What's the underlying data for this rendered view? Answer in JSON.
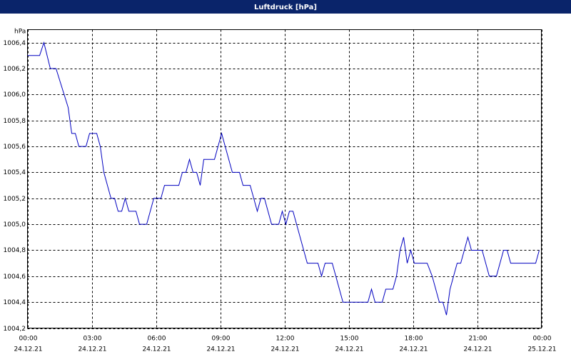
{
  "chart_data": {
    "type": "line",
    "title": "Luftdruck [hPa]",
    "y_unit": "hPa",
    "x": [
      "24.12.21 00:00",
      "24.12.21 00:34",
      "24.12.21 00:46",
      "24.12.21 01:04",
      "24.12.21 01:20",
      "24.12.21 01:54",
      "24.12.21 02:04",
      "24.12.21 02:14",
      "24.12.21 02:24",
      "24.12.21 02:44",
      "24.12.21 02:54",
      "24.12.21 03:14",
      "24.12.21 03:24",
      "24.12.21 03:34",
      "24.12.21 03:54",
      "24.12.21 04:04",
      "24.12.21 04:14",
      "24.12.21 04:24",
      "24.12.21 04:34",
      "24.12.21 04:44",
      "24.12.21 05:04",
      "24.12.21 05:14",
      "24.12.21 05:34",
      "24.12.21 05:54",
      "24.12.21 06:14",
      "24.12.21 06:24",
      "24.12.21 07:04",
      "24.12.21 07:14",
      "24.12.21 07:24",
      "24.12.21 07:34",
      "24.12.21 07:44",
      "24.12.21 07:54",
      "24.12.21 08:04",
      "24.12.21 08:14",
      "24.12.21 08:44",
      "24.12.21 09:04",
      "24.12.21 09:24",
      "24.12.21 09:34",
      "24.12.21 09:54",
      "24.12.21 10:04",
      "24.12.21 10:24",
      "24.12.21 10:44",
      "24.12.21 10:54",
      "24.12.21 11:04",
      "24.12.21 11:24",
      "24.12.21 11:44",
      "24.12.21 11:54",
      "24.12.21 12:04",
      "24.12.21 12:14",
      "24.12.21 12:24",
      "24.12.21 13:04",
      "24.12.21 13:34",
      "24.12.21 13:44",
      "24.12.21 13:54",
      "24.12.21 14:14",
      "24.12.21 14:44",
      "24.12.21 15:54",
      "24.12.21 16:04",
      "24.12.21 16:14",
      "24.12.21 16:34",
      "24.12.21 16:44",
      "24.12.21 17:04",
      "24.12.21 17:14",
      "24.12.21 17:24",
      "24.12.21 17:34",
      "24.12.21 17:44",
      "24.12.21 17:54",
      "24.12.21 18:04",
      "24.12.21 18:40",
      "24.12.21 18:54",
      "24.12.21 19:14",
      "24.12.21 19:24",
      "24.12.21 19:34",
      "24.12.21 19:44",
      "24.12.21 20:04",
      "24.12.21 20:14",
      "24.12.21 20:34",
      "24.12.21 20:44",
      "24.12.21 21:14",
      "24.12.21 21:34",
      "24.12.21 21:54",
      "24.12.21 22:14",
      "24.12.21 22:24",
      "24.12.21 22:34",
      "24.12.21 23:44",
      "24.12.21 23:54"
    ],
    "series": [
      {
        "color": "#0000c0",
        "values": [
          1006.3,
          1006.3,
          1006.4,
          1006.2,
          1006.2,
          1005.9,
          1005.7,
          1005.7,
          1005.6,
          1005.6,
          1005.7,
          1005.7,
          1005.6,
          1005.4,
          1005.2,
          1005.2,
          1005.1,
          1005.1,
          1005.2,
          1005.1,
          1005.1,
          1005.0,
          1005.0,
          1005.2,
          1005.2,
          1005.3,
          1005.3,
          1005.4,
          1005.4,
          1005.5,
          1005.4,
          1005.4,
          1005.3,
          1005.5,
          1005.5,
          1005.7,
          1005.5,
          1005.4,
          1005.4,
          1005.3,
          1005.3,
          1005.1,
          1005.2,
          1005.2,
          1005.0,
          1005.0,
          1005.1,
          1005.0,
          1005.1,
          1005.1,
          1004.7,
          1004.7,
          1004.6,
          1004.7,
          1004.7,
          1004.4,
          1004.4,
          1004.5,
          1004.4,
          1004.4,
          1004.5,
          1004.5,
          1004.6,
          1004.8,
          1004.9,
          1004.7,
          1004.8,
          1004.7,
          1004.7,
          1004.6,
          1004.4,
          1004.4,
          1004.3,
          1004.5,
          1004.7,
          1004.7,
          1004.9,
          1004.8,
          1004.8,
          1004.6,
          1004.6,
          1004.8,
          1004.8,
          1004.7,
          1004.7,
          1004.8
        ]
      }
    ],
    "xlim": [
      "24.12.21 00:00",
      "25.12.21 00:00"
    ],
    "xticks": [
      {
        "value": "24.12.21 00:00",
        "label": [
          "00:00",
          "24.12.21"
        ]
      },
      {
        "value": "24.12.21 03:00",
        "label": [
          "03:00",
          "24.12.21"
        ]
      },
      {
        "value": "24.12.21 06:00",
        "label": [
          "06:00",
          "24.12.21"
        ]
      },
      {
        "value": "24.12.21 09:00",
        "label": [
          "09:00",
          "24.12.21"
        ]
      },
      {
        "value": "24.12.21 12:00",
        "label": [
          "12:00",
          "24.12.21"
        ]
      },
      {
        "value": "24.12.21 15:00",
        "label": [
          "15:00",
          "24.12.21"
        ]
      },
      {
        "value": "24.12.21 18:00",
        "label": [
          "18:00",
          "24.12.21"
        ]
      },
      {
        "value": "24.12.21 21:00",
        "label": [
          "21:00",
          "24.12.21"
        ]
      },
      {
        "value": "25.12.21 00:00",
        "label": [
          "00:00",
          "25.12.21"
        ]
      }
    ],
    "ylim": [
      1004.2,
      1006.5
    ],
    "yticks": [
      {
        "value": 1004.2,
        "label": "1004,2"
      },
      {
        "value": 1004.4,
        "label": "1004,4"
      },
      {
        "value": 1004.6,
        "label": "1004,6"
      },
      {
        "value": 1004.8,
        "label": "1004,8"
      },
      {
        "value": 1005.0,
        "label": "1005,0"
      },
      {
        "value": 1005.2,
        "label": "1005,2"
      },
      {
        "value": 1005.4,
        "label": "1005,4"
      },
      {
        "value": 1005.6,
        "label": "1005,6"
      },
      {
        "value": 1005.8,
        "label": "1005,8"
      },
      {
        "value": 1006.0,
        "label": "1006,0"
      },
      {
        "value": 1006.2,
        "label": "1006,2"
      },
      {
        "value": 1006.4,
        "label": "1006,4"
      }
    ],
    "grid": true
  }
}
